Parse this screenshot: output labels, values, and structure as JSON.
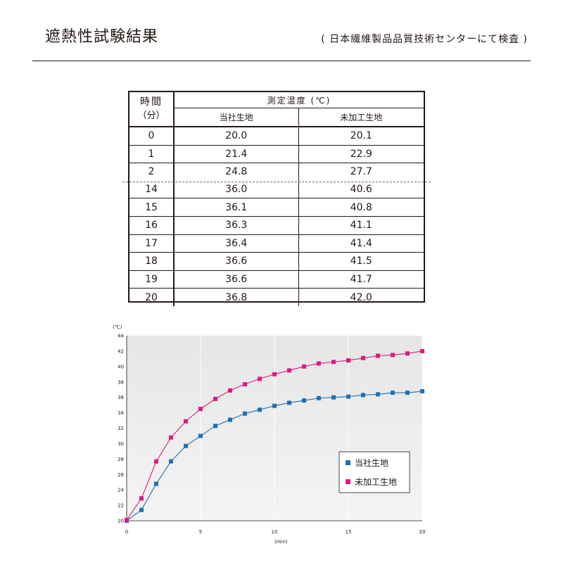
{
  "page": {
    "title": "遮熱性試験結果",
    "note": "( 日本繊維製品品質技術センターにて検査 )"
  },
  "table": {
    "time_header": "時間",
    "time_unit": "（分）",
    "measure_header": "測定温度 (℃)",
    "col_a": "当社生地",
    "col_b": "未加工生地",
    "rows": [
      {
        "t": "0",
        "a": "20.0",
        "b": "20.1"
      },
      {
        "t": "1",
        "a": "21.4",
        "b": "22.9"
      },
      {
        "t": "2",
        "a": "24.8",
        "b": "27.7"
      },
      {
        "t": "14",
        "a": "36.0",
        "b": "40.6"
      },
      {
        "t": "15",
        "a": "36.1",
        "b": "40.8"
      },
      {
        "t": "16",
        "a": "36.3",
        "b": "41.1"
      },
      {
        "t": "17",
        "a": "36.4",
        "b": "41.4"
      },
      {
        "t": "18",
        "a": "36.6",
        "b": "41.5"
      },
      {
        "t": "19",
        "a": "36.6",
        "b": "41.7"
      },
      {
        "t": "20",
        "a": "36.8",
        "b": "42.0"
      }
    ]
  },
  "chart_data": {
    "type": "line",
    "title": "",
    "xlabel": "(min)",
    "ylabel": "(℃)",
    "xlim": [
      0,
      20
    ],
    "ylim": [
      20,
      44
    ],
    "xticks": [
      0,
      5,
      10,
      15,
      20
    ],
    "yticks": [
      20,
      22,
      24,
      26,
      28,
      30,
      32,
      34,
      36,
      38,
      40,
      42,
      44
    ],
    "grid": "vertical",
    "legend": "bottom-right",
    "x": [
      0,
      1,
      2,
      3,
      4,
      5,
      6,
      7,
      8,
      9,
      10,
      11,
      12,
      13,
      14,
      15,
      16,
      17,
      18,
      19,
      20
    ],
    "series": [
      {
        "name": "当社生地",
        "color": "#1f6fb4",
        "values": [
          20.0,
          21.4,
          24.8,
          27.7,
          29.7,
          31.0,
          32.3,
          33.1,
          33.9,
          34.4,
          34.9,
          35.3,
          35.6,
          35.9,
          36.0,
          36.1,
          36.3,
          36.4,
          36.6,
          36.6,
          36.8
        ]
      },
      {
        "name": "未加工生地",
        "color": "#e0197f",
        "values": [
          20.1,
          22.9,
          27.7,
          30.8,
          32.9,
          34.5,
          35.8,
          36.9,
          37.7,
          38.4,
          39.0,
          39.5,
          40.0,
          40.4,
          40.6,
          40.8,
          41.1,
          41.4,
          41.5,
          41.7,
          42.0
        ]
      }
    ]
  }
}
